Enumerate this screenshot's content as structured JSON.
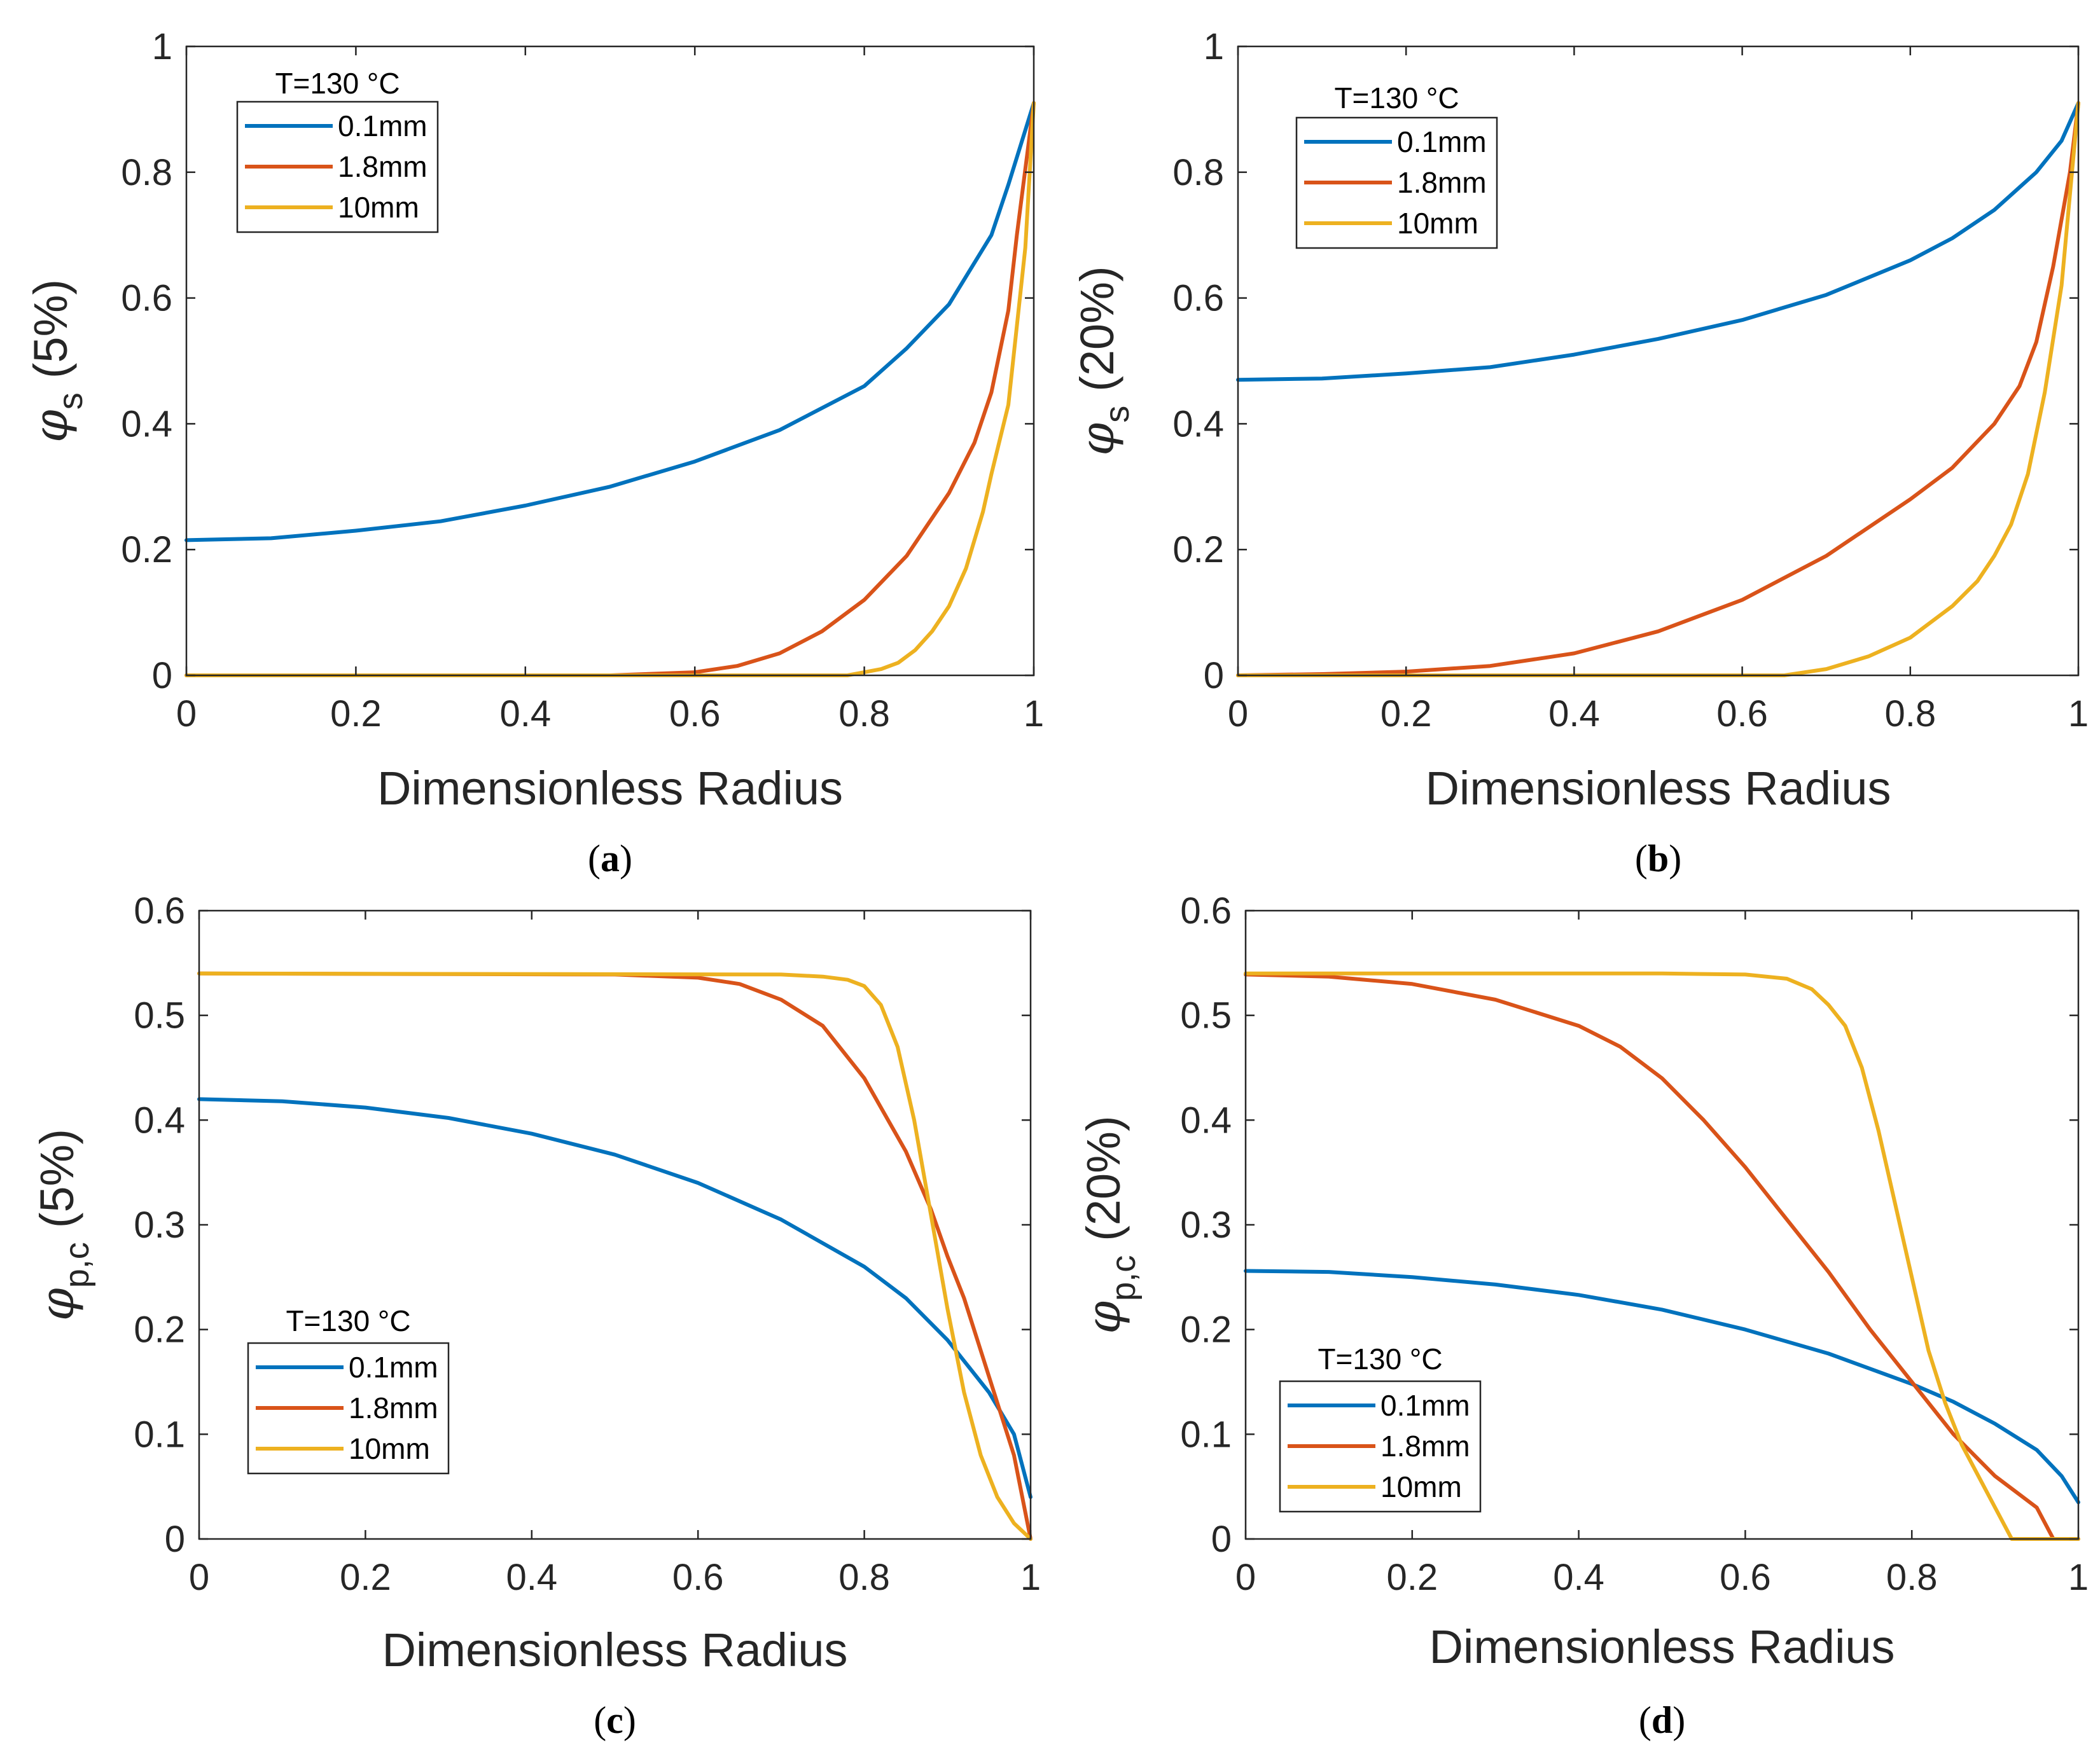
{
  "chart_data": [
    {
      "panel": "a",
      "type": "line",
      "caption_prefix": "(",
      "caption_letter": "a",
      "caption_suffix": ")",
      "xlabel": "Dimensionless Radius",
      "ylabel_symbol": "φ",
      "ylabel_subscript": "s",
      "ylabel_suffix": "(5%)",
      "xlim": [
        0,
        1
      ],
      "ylim": [
        0,
        1
      ],
      "xticks": [
        0,
        0.2,
        0.4,
        0.6,
        0.8,
        1
      ],
      "xtick_labels": [
        "0",
        "0.2",
        "0.4",
        "0.6",
        "0.8",
        "1"
      ],
      "yticks": [
        0,
        0.2,
        0.4,
        0.6,
        0.8,
        1
      ],
      "ytick_labels": [
        "0",
        "0.2",
        "0.4",
        "0.6",
        "0.8",
        "1"
      ],
      "legend_title": "T=130 °C",
      "legend_position": "top-left",
      "series": [
        {
          "name": "0.1mm",
          "color": "#0072BD",
          "x": [
            0,
            0.1,
            0.2,
            0.3,
            0.4,
            0.5,
            0.6,
            0.7,
            0.8,
            0.85,
            0.9,
            0.95,
            0.97,
            1.0
          ],
          "y": [
            0.215,
            0.218,
            0.23,
            0.245,
            0.27,
            0.3,
            0.34,
            0.39,
            0.46,
            0.52,
            0.59,
            0.7,
            0.78,
            0.91
          ]
        },
        {
          "name": "1.8mm",
          "color": "#D95319",
          "x": [
            0,
            0.5,
            0.6,
            0.65,
            0.7,
            0.75,
            0.8,
            0.85,
            0.9,
            0.93,
            0.95,
            0.97,
            0.98,
            1.0
          ],
          "y": [
            0,
            0,
            0.005,
            0.015,
            0.035,
            0.07,
            0.12,
            0.19,
            0.29,
            0.37,
            0.45,
            0.58,
            0.7,
            0.91
          ]
        },
        {
          "name": "10mm",
          "color": "#EDB120",
          "x": [
            0,
            0.78,
            0.8,
            0.82,
            0.84,
            0.86,
            0.88,
            0.9,
            0.92,
            0.94,
            0.95,
            0.97,
            0.99,
            1.0
          ],
          "y": [
            0,
            0,
            0.005,
            0.01,
            0.02,
            0.04,
            0.07,
            0.11,
            0.17,
            0.26,
            0.32,
            0.43,
            0.68,
            0.91
          ]
        }
      ]
    },
    {
      "panel": "b",
      "type": "line",
      "caption_prefix": "(",
      "caption_letter": "b",
      "caption_suffix": ")",
      "xlabel": "Dimensionless Radius",
      "ylabel_symbol": "φ",
      "ylabel_subscript": "s",
      "ylabel_suffix": "(20%)",
      "xlim": [
        0,
        1
      ],
      "ylim": [
        0,
        1
      ],
      "xticks": [
        0,
        0.2,
        0.4,
        0.6,
        0.8,
        1
      ],
      "xtick_labels": [
        "0",
        "0.2",
        "0.4",
        "0.6",
        "0.8",
        "1"
      ],
      "yticks": [
        0,
        0.2,
        0.4,
        0.6,
        0.8,
        1
      ],
      "ytick_labels": [
        "0",
        "0.2",
        "0.4",
        "0.6",
        "0.8",
        "1"
      ],
      "legend_title": "T=130 °C",
      "legend_position": "top-left",
      "series": [
        {
          "name": "0.1mm",
          "color": "#0072BD",
          "x": [
            0,
            0.1,
            0.2,
            0.3,
            0.4,
            0.5,
            0.6,
            0.7,
            0.8,
            0.85,
            0.9,
            0.95,
            0.98,
            1.0
          ],
          "y": [
            0.47,
            0.472,
            0.48,
            0.49,
            0.51,
            0.535,
            0.565,
            0.605,
            0.66,
            0.695,
            0.74,
            0.8,
            0.85,
            0.91
          ]
        },
        {
          "name": "1.8mm",
          "color": "#D95319",
          "x": [
            0,
            0.1,
            0.2,
            0.3,
            0.4,
            0.5,
            0.6,
            0.7,
            0.8,
            0.85,
            0.9,
            0.93,
            0.95,
            0.97,
            0.99,
            1.0
          ],
          "y": [
            0,
            0.002,
            0.006,
            0.015,
            0.035,
            0.07,
            0.12,
            0.19,
            0.28,
            0.33,
            0.4,
            0.46,
            0.53,
            0.65,
            0.8,
            0.91
          ]
        },
        {
          "name": "10mm",
          "color": "#EDB120",
          "x": [
            0,
            0.65,
            0.7,
            0.75,
            0.8,
            0.85,
            0.88,
            0.9,
            0.92,
            0.94,
            0.96,
            0.98,
            1.0
          ],
          "y": [
            0,
            0,
            0.01,
            0.03,
            0.06,
            0.11,
            0.15,
            0.19,
            0.24,
            0.32,
            0.45,
            0.62,
            0.91
          ]
        }
      ]
    },
    {
      "panel": "c",
      "type": "line",
      "caption_prefix": "(",
      "caption_letter": "c",
      "caption_suffix": ")",
      "xlabel": "Dimensionless Radius",
      "ylabel_symbol": "φ",
      "ylabel_subscript": "p,c",
      "ylabel_suffix": "(5%)",
      "xlim": [
        0,
        1
      ],
      "ylim": [
        0,
        0.6
      ],
      "xticks": [
        0,
        0.2,
        0.4,
        0.6,
        0.8,
        1
      ],
      "xtick_labels": [
        "0",
        "0.2",
        "0.4",
        "0.6",
        "0.8",
        "1"
      ],
      "yticks": [
        0,
        0.1,
        0.2,
        0.3,
        0.4,
        0.5,
        0.6
      ],
      "ytick_labels": [
        "0",
        "0.1",
        "0.2",
        "0.3",
        "0.4",
        "0.5",
        "0.6"
      ],
      "legend_title": "T=130 °C",
      "legend_position": "bottom-left",
      "series": [
        {
          "name": "0.1mm",
          "color": "#0072BD",
          "x": [
            0,
            0.1,
            0.2,
            0.3,
            0.4,
            0.5,
            0.6,
            0.7,
            0.8,
            0.85,
            0.9,
            0.95,
            0.98,
            1.0
          ],
          "y": [
            0.42,
            0.418,
            0.412,
            0.402,
            0.387,
            0.367,
            0.34,
            0.305,
            0.26,
            0.23,
            0.19,
            0.14,
            0.1,
            0.04
          ]
        },
        {
          "name": "1.8mm",
          "color": "#D95319",
          "x": [
            0,
            0.5,
            0.6,
            0.65,
            0.7,
            0.75,
            0.8,
            0.85,
            0.88,
            0.9,
            0.92,
            0.94,
            0.96,
            0.98,
            1.0
          ],
          "y": [
            0.54,
            0.539,
            0.536,
            0.53,
            0.515,
            0.49,
            0.44,
            0.37,
            0.315,
            0.27,
            0.23,
            0.18,
            0.13,
            0.08,
            0
          ]
        },
        {
          "name": "10mm",
          "color": "#EDB120",
          "x": [
            0,
            0.7,
            0.75,
            0.78,
            0.8,
            0.82,
            0.84,
            0.86,
            0.88,
            0.9,
            0.92,
            0.94,
            0.96,
            0.98,
            1.0
          ],
          "y": [
            0.54,
            0.539,
            0.537,
            0.534,
            0.528,
            0.51,
            0.47,
            0.4,
            0.31,
            0.22,
            0.14,
            0.08,
            0.04,
            0.015,
            0
          ]
        }
      ]
    },
    {
      "panel": "d",
      "type": "line",
      "caption_prefix": "(",
      "caption_letter": "d",
      "caption_suffix": ")",
      "xlabel": "Dimensionless Radius",
      "ylabel_symbol": "φ",
      "ylabel_subscript": "p,c",
      "ylabel_suffix": "(20%)",
      "xlim": [
        0,
        1
      ],
      "ylim": [
        0,
        0.6
      ],
      "xticks": [
        0,
        0.2,
        0.4,
        0.6,
        0.8,
        1
      ],
      "xtick_labels": [
        "0",
        "0.2",
        "0.4",
        "0.6",
        "0.8",
        "1"
      ],
      "yticks": [
        0,
        0.1,
        0.2,
        0.3,
        0.4,
        0.5,
        0.6
      ],
      "ytick_labels": [
        "0",
        "0.1",
        "0.2",
        "0.3",
        "0.4",
        "0.5",
        "0.6"
      ],
      "legend_title": "T=130 °C",
      "legend_position": "bottom-left",
      "series": [
        {
          "name": "0.1mm",
          "color": "#0072BD",
          "x": [
            0,
            0.1,
            0.2,
            0.3,
            0.4,
            0.5,
            0.6,
            0.7,
            0.8,
            0.85,
            0.9,
            0.95,
            0.98,
            1.0
          ],
          "y": [
            0.256,
            0.255,
            0.25,
            0.243,
            0.233,
            0.219,
            0.2,
            0.177,
            0.148,
            0.131,
            0.11,
            0.085,
            0.06,
            0.035
          ]
        },
        {
          "name": "1.8mm",
          "color": "#D95319",
          "x": [
            0,
            0.1,
            0.2,
            0.3,
            0.4,
            0.45,
            0.5,
            0.55,
            0.6,
            0.65,
            0.7,
            0.75,
            0.8,
            0.85,
            0.9,
            0.95,
            0.97,
            1.0
          ],
          "y": [
            0.539,
            0.537,
            0.53,
            0.515,
            0.49,
            0.47,
            0.44,
            0.4,
            0.355,
            0.305,
            0.255,
            0.2,
            0.15,
            0.1,
            0.06,
            0.03,
            0,
            0
          ]
        },
        {
          "name": "10mm",
          "color": "#EDB120",
          "x": [
            0,
            0.5,
            0.6,
            0.65,
            0.68,
            0.7,
            0.72,
            0.74,
            0.76,
            0.78,
            0.8,
            0.82,
            0.84,
            0.86,
            0.88,
            0.9,
            0.92,
            1.0
          ],
          "y": [
            0.54,
            0.54,
            0.539,
            0.535,
            0.525,
            0.51,
            0.49,
            0.45,
            0.39,
            0.32,
            0.25,
            0.18,
            0.13,
            0.09,
            0.06,
            0.03,
            0,
            0
          ]
        }
      ]
    }
  ]
}
